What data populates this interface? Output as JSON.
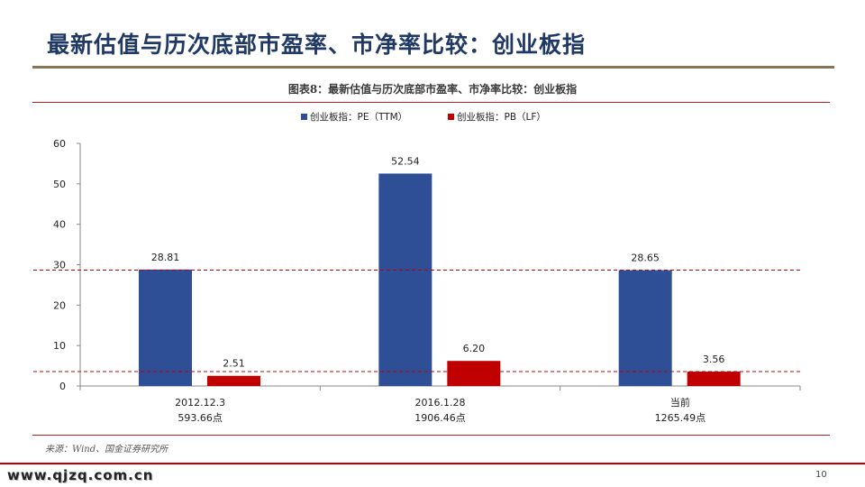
{
  "slide": {
    "title": "最新估值与历次底部市盈率、市净率比较：创业板指",
    "figure_caption": "图表8：最新估值与历次底部市盈率、市净率比较：创业板指",
    "source_note": "来源：Wind、国金证券研究所",
    "watermark": "www.qjzq.com.cn",
    "page_number": "10"
  },
  "chart_data": {
    "type": "bar",
    "categories": [
      "2012.12.3",
      "2016.1.28",
      "当前"
    ],
    "category_sublabels": [
      "593.66点",
      "1906.46点",
      "1265.49点"
    ],
    "series": [
      {
        "name": "创业板指：PE（TTM）",
        "values": [
          28.81,
          52.54,
          28.65
        ],
        "color": "#2e4f96",
        "labels": [
          "28.81",
          "52.54",
          "28.65"
        ]
      },
      {
        "name": "创业板指：PB（LF）",
        "values": [
          2.51,
          6.2,
          3.56
        ],
        "color": "#c00000",
        "labels": [
          "2.51",
          "6.20",
          "3.56"
        ]
      }
    ],
    "ylim": [
      0,
      60
    ],
    "yticks": [
      0,
      10,
      20,
      30,
      40,
      50,
      60
    ],
    "ytick_labels": [
      "0",
      "10",
      "20",
      "30",
      "40",
      "50",
      "60"
    ],
    "reference_lines": [
      {
        "value": 28.65,
        "style": "dashed",
        "color": "#c00000"
      },
      {
        "value": 3.56,
        "style": "dashed",
        "color": "#c00000"
      }
    ],
    "legend_position": "top-center",
    "grid": false
  }
}
